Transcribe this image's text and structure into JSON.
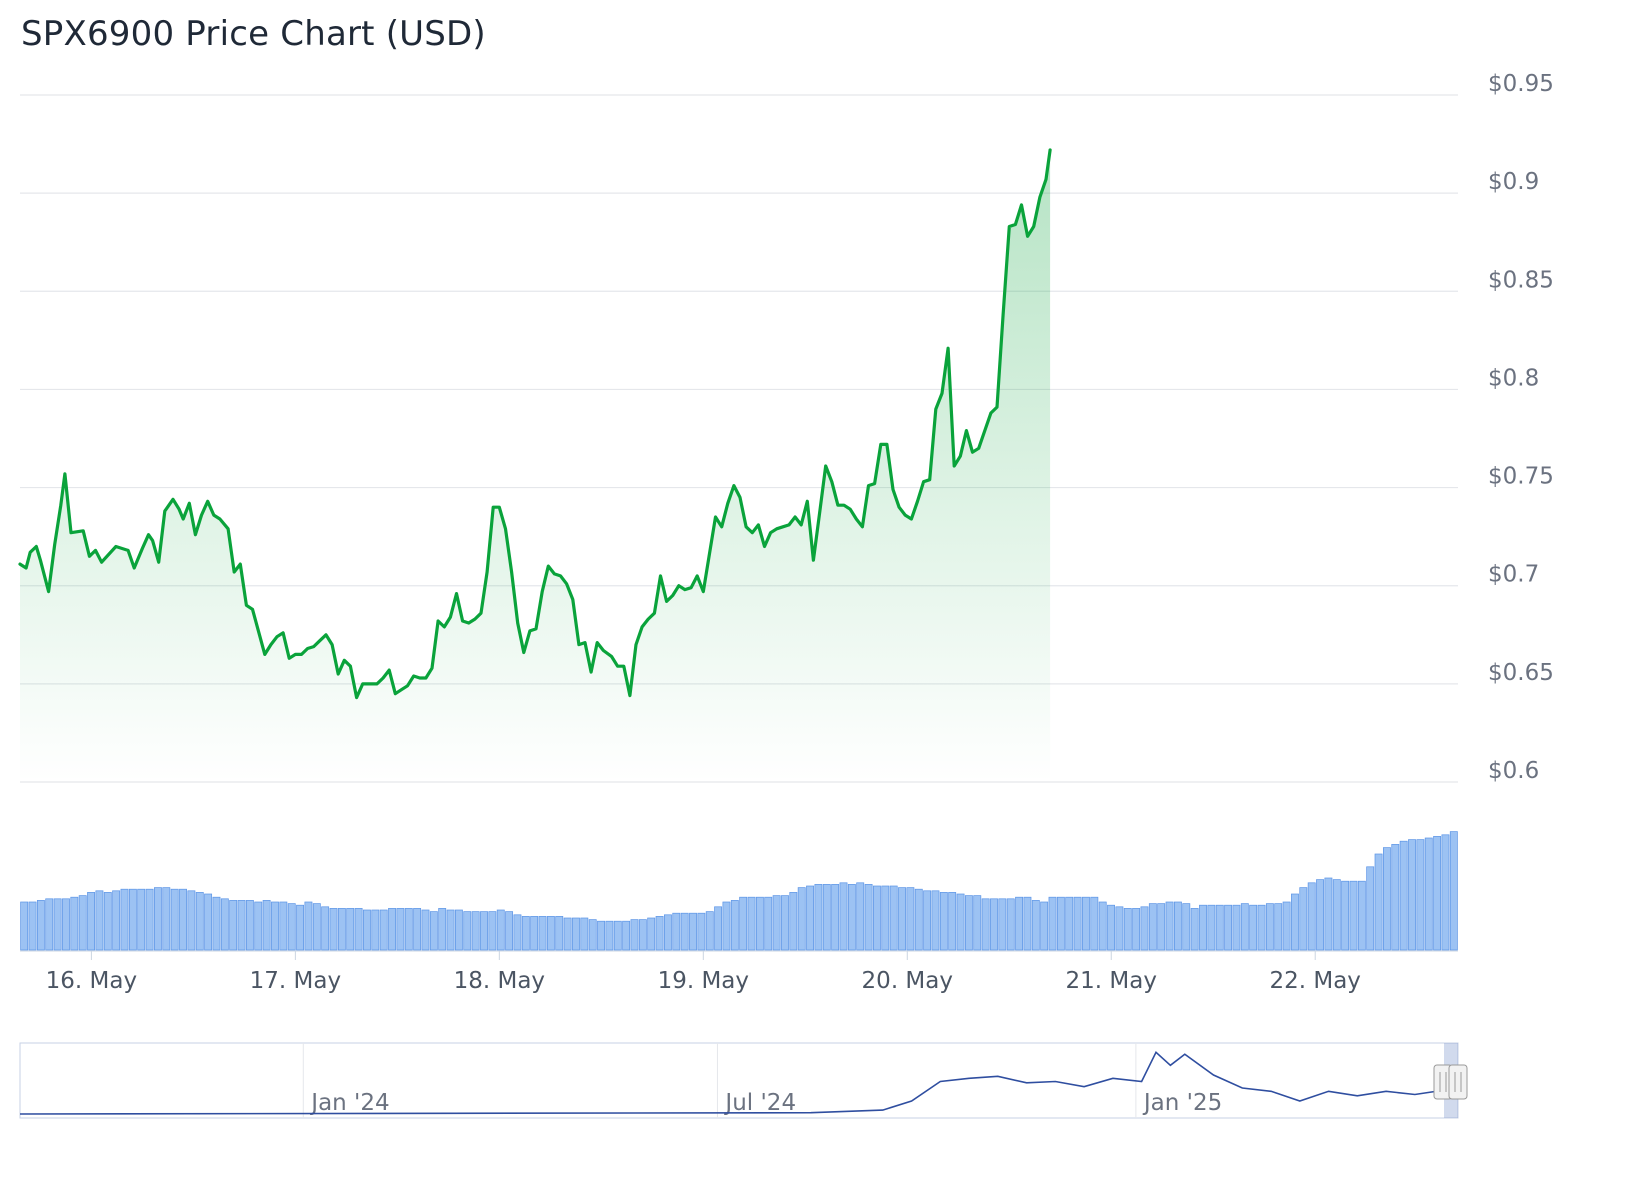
{
  "title": "SPX6900 Price Chart (USD)",
  "colors": {
    "price_line": "#0aa33b",
    "volume_fill": "#9cc2f3",
    "volume_stroke": "#5b94e6",
    "navigator_line": "#2f4ea0",
    "grid": "#e5e7eb"
  },
  "chart_data": {
    "type": "line",
    "title": "SPX6900 Price Chart (USD)",
    "xlabel": "",
    "ylabel": "",
    "ylim": [
      0.6,
      0.95
    ],
    "y_ticks": [
      "$0.95",
      "$0.9",
      "$0.85",
      "$0.8",
      "$0.75",
      "$0.7",
      "$0.65",
      "$0.6"
    ],
    "x_ticks": [
      "16. May",
      "17. May",
      "18. May",
      "19. May",
      "20. May",
      "21. May",
      "22. May"
    ],
    "x_range_days": [
      15.65,
      22.7
    ],
    "grid": true,
    "legend": "none",
    "series": [
      {
        "type": "area",
        "points": [
          [
            15.65,
            0.711
          ],
          [
            15.68,
            0.709
          ],
          [
            15.7,
            0.717
          ],
          [
            15.73,
            0.72
          ],
          [
            15.75,
            0.713
          ],
          [
            15.79,
            0.697
          ],
          [
            15.82,
            0.721
          ],
          [
            15.85,
            0.741
          ],
          [
            15.87,
            0.757
          ],
          [
            15.9,
            0.727
          ],
          [
            15.96,
            0.728
          ],
          [
            15.99,
            0.715
          ],
          [
            16.02,
            0.718
          ],
          [
            16.05,
            0.712
          ],
          [
            16.12,
            0.72
          ],
          [
            16.18,
            0.718
          ],
          [
            16.21,
            0.709
          ],
          [
            16.25,
            0.719
          ],
          [
            16.28,
            0.726
          ],
          [
            16.3,
            0.723
          ],
          [
            16.33,
            0.712
          ],
          [
            16.36,
            0.738
          ],
          [
            16.4,
            0.744
          ],
          [
            16.43,
            0.739
          ],
          [
            16.45,
            0.734
          ],
          [
            16.48,
            0.742
          ],
          [
            16.51,
            0.726
          ],
          [
            16.54,
            0.736
          ],
          [
            16.57,
            0.743
          ],
          [
            16.6,
            0.736
          ],
          [
            16.63,
            0.734
          ],
          [
            16.67,
            0.729
          ],
          [
            16.7,
            0.707
          ],
          [
            16.73,
            0.711
          ],
          [
            16.76,
            0.69
          ],
          [
            16.79,
            0.688
          ],
          [
            16.85,
            0.665
          ],
          [
            16.88,
            0.67
          ],
          [
            16.91,
            0.674
          ],
          [
            16.94,
            0.676
          ],
          [
            16.97,
            0.663
          ],
          [
            17.0,
            0.665
          ],
          [
            17.03,
            0.665
          ],
          [
            17.06,
            0.668
          ],
          [
            17.09,
            0.669
          ],
          [
            17.12,
            0.672
          ],
          [
            17.15,
            0.675
          ],
          [
            17.18,
            0.67
          ],
          [
            17.21,
            0.655
          ],
          [
            17.24,
            0.662
          ],
          [
            17.27,
            0.659
          ],
          [
            17.3,
            0.643
          ],
          [
            17.33,
            0.65
          ],
          [
            17.37,
            0.65
          ],
          [
            17.4,
            0.65
          ],
          [
            17.43,
            0.653
          ],
          [
            17.46,
            0.657
          ],
          [
            17.49,
            0.645
          ],
          [
            17.52,
            0.647
          ],
          [
            17.55,
            0.649
          ],
          [
            17.58,
            0.654
          ],
          [
            17.61,
            0.653
          ],
          [
            17.64,
            0.653
          ],
          [
            17.67,
            0.658
          ],
          [
            17.7,
            0.682
          ],
          [
            17.73,
            0.679
          ],
          [
            17.76,
            0.684
          ],
          [
            17.79,
            0.696
          ],
          [
            17.82,
            0.682
          ],
          [
            17.85,
            0.681
          ],
          [
            17.88,
            0.683
          ],
          [
            17.91,
            0.686
          ],
          [
            17.94,
            0.707
          ],
          [
            17.97,
            0.74
          ],
          [
            18.0,
            0.74
          ],
          [
            18.03,
            0.729
          ],
          [
            18.06,
            0.707
          ],
          [
            18.09,
            0.681
          ],
          [
            18.12,
            0.666
          ],
          [
            18.15,
            0.677
          ],
          [
            18.18,
            0.678
          ],
          [
            18.21,
            0.697
          ],
          [
            18.24,
            0.71
          ],
          [
            18.27,
            0.706
          ],
          [
            18.3,
            0.705
          ],
          [
            18.33,
            0.701
          ],
          [
            18.36,
            0.693
          ],
          [
            18.39,
            0.67
          ],
          [
            18.42,
            0.671
          ],
          [
            18.45,
            0.656
          ],
          [
            18.48,
            0.671
          ],
          [
            18.51,
            0.667
          ],
          [
            18.55,
            0.664
          ],
          [
            18.58,
            0.659
          ],
          [
            18.61,
            0.659
          ],
          [
            18.64,
            0.644
          ],
          [
            18.67,
            0.67
          ],
          [
            18.7,
            0.679
          ],
          [
            18.73,
            0.683
          ],
          [
            18.76,
            0.686
          ],
          [
            18.79,
            0.705
          ],
          [
            18.82,
            0.692
          ],
          [
            18.85,
            0.695
          ],
          [
            18.88,
            0.7
          ],
          [
            18.91,
            0.698
          ],
          [
            18.94,
            0.699
          ],
          [
            18.97,
            0.705
          ],
          [
            19.0,
            0.697
          ],
          [
            19.03,
            0.716
          ],
          [
            19.06,
            0.735
          ],
          [
            19.09,
            0.73
          ],
          [
            19.12,
            0.742
          ],
          [
            19.15,
            0.751
          ],
          [
            19.18,
            0.745
          ],
          [
            19.21,
            0.73
          ],
          [
            19.24,
            0.727
          ],
          [
            19.27,
            0.731
          ],
          [
            19.3,
            0.72
          ],
          [
            19.33,
            0.727
          ],
          [
            19.36,
            0.729
          ],
          [
            19.39,
            0.73
          ],
          [
            19.42,
            0.731
          ],
          [
            19.45,
            0.735
          ],
          [
            19.48,
            0.731
          ],
          [
            19.51,
            0.743
          ],
          [
            19.54,
            0.713
          ],
          [
            19.57,
            0.737
          ],
          [
            19.6,
            0.761
          ],
          [
            19.63,
            0.753
          ],
          [
            19.66,
            0.741
          ],
          [
            19.69,
            0.741
          ],
          [
            19.72,
            0.739
          ],
          [
            19.75,
            0.734
          ],
          [
            19.78,
            0.73
          ],
          [
            19.81,
            0.751
          ],
          [
            19.84,
            0.752
          ],
          [
            19.87,
            0.772
          ],
          [
            19.9,
            0.772
          ],
          [
            19.93,
            0.749
          ],
          [
            19.96,
            0.74
          ],
          [
            19.99,
            0.736
          ],
          [
            20.02,
            0.734
          ],
          [
            20.05,
            0.743
          ],
          [
            20.08,
            0.753
          ],
          [
            20.11,
            0.754
          ],
          [
            20.14,
            0.79
          ],
          [
            20.17,
            0.798
          ],
          [
            20.2,
            0.821
          ],
          [
            20.23,
            0.761
          ],
          [
            20.26,
            0.766
          ],
          [
            20.29,
            0.779
          ],
          [
            20.32,
            0.768
          ],
          [
            20.35,
            0.77
          ],
          [
            20.38,
            0.779
          ],
          [
            20.41,
            0.788
          ],
          [
            20.44,
            0.791
          ],
          [
            20.47,
            0.838
          ],
          [
            20.5,
            0.883
          ],
          [
            20.53,
            0.884
          ],
          [
            20.56,
            0.894
          ],
          [
            20.59,
            0.878
          ],
          [
            20.62,
            0.883
          ],
          [
            20.65,
            0.898
          ],
          [
            20.68,
            0.907
          ],
          [
            20.7,
            0.922
          ]
        ]
      },
      {
        "name": "",
        "type": "volume-columns",
        "values": [
          0.3,
          0.3,
          0.31,
          0.32,
          0.32,
          0.32,
          0.33,
          0.34,
          0.36,
          0.37,
          0.36,
          0.37,
          0.38,
          0.38,
          0.38,
          0.38,
          0.39,
          0.39,
          0.38,
          0.38,
          0.37,
          0.36,
          0.35,
          0.33,
          0.32,
          0.31,
          0.31,
          0.31,
          0.3,
          0.31,
          0.3,
          0.3,
          0.29,
          0.28,
          0.3,
          0.29,
          0.27,
          0.26,
          0.26,
          0.26,
          0.26,
          0.25,
          0.25,
          0.25,
          0.26,
          0.26,
          0.26,
          0.26,
          0.25,
          0.24,
          0.26,
          0.25,
          0.25,
          0.24,
          0.24,
          0.24,
          0.24,
          0.25,
          0.24,
          0.22,
          0.21,
          0.21,
          0.21,
          0.21,
          0.21,
          0.2,
          0.2,
          0.2,
          0.19,
          0.18,
          0.18,
          0.18,
          0.18,
          0.19,
          0.19,
          0.2,
          0.21,
          0.22,
          0.23,
          0.23,
          0.23,
          0.23,
          0.24,
          0.27,
          0.3,
          0.31,
          0.33,
          0.33,
          0.33,
          0.33,
          0.34,
          0.34,
          0.36,
          0.39,
          0.4,
          0.41,
          0.41,
          0.41,
          0.42,
          0.41,
          0.42,
          0.41,
          0.4,
          0.4,
          0.4,
          0.39,
          0.39,
          0.38,
          0.37,
          0.37,
          0.36,
          0.36,
          0.35,
          0.34,
          0.34,
          0.32,
          0.32,
          0.32,
          0.32,
          0.33,
          0.33,
          0.31,
          0.3,
          0.33,
          0.33,
          0.33,
          0.33,
          0.33,
          0.33,
          0.3,
          0.28,
          0.27,
          0.26,
          0.26,
          0.27,
          0.29,
          0.29,
          0.3,
          0.3,
          0.29,
          0.26,
          0.28,
          0.28,
          0.28,
          0.28,
          0.28,
          0.29,
          0.28,
          0.28,
          0.29,
          0.29,
          0.3,
          0.35,
          0.39,
          0.42,
          0.44,
          0.45,
          0.44,
          0.43,
          0.43,
          0.43,
          0.52,
          0.6,
          0.64,
          0.66,
          0.68,
          0.69,
          0.69,
          0.7,
          0.71,
          0.72,
          0.74
        ]
      }
    ]
  },
  "navigator": {
    "labels": [
      "Jan '24",
      "Jul '24",
      "Jan '25"
    ],
    "points": [
      [
        0.0,
        0.0
      ],
      [
        0.3,
        0.01
      ],
      [
        0.55,
        0.02
      ],
      [
        0.6,
        0.06
      ],
      [
        0.62,
        0.2
      ],
      [
        0.64,
        0.5
      ],
      [
        0.66,
        0.55
      ],
      [
        0.68,
        0.58
      ],
      [
        0.7,
        0.48
      ],
      [
        0.72,
        0.5
      ],
      [
        0.74,
        0.42
      ],
      [
        0.76,
        0.55
      ],
      [
        0.78,
        0.5
      ],
      [
        0.79,
        0.95
      ],
      [
        0.8,
        0.75
      ],
      [
        0.81,
        0.92
      ],
      [
        0.83,
        0.6
      ],
      [
        0.85,
        0.4
      ],
      [
        0.87,
        0.35
      ],
      [
        0.89,
        0.2
      ],
      [
        0.91,
        0.35
      ],
      [
        0.93,
        0.28
      ],
      [
        0.95,
        0.35
      ],
      [
        0.97,
        0.3
      ],
      [
        0.985,
        0.35
      ],
      [
        1.0,
        0.6
      ]
    ]
  }
}
